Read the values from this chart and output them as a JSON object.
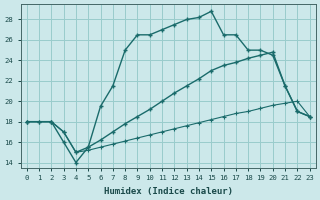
{
  "xlabel": "Humidex (Indice chaleur)",
  "bg_color": "#cce8ea",
  "grid_color": "#99cccc",
  "line_color": "#1a6b6b",
  "xlim": [
    -0.5,
    23.5
  ],
  "ylim": [
    13.5,
    29.5
  ],
  "xticks": [
    0,
    1,
    2,
    3,
    4,
    5,
    6,
    7,
    8,
    9,
    10,
    11,
    12,
    13,
    14,
    15,
    16,
    17,
    18,
    19,
    20,
    21,
    22,
    23
  ],
  "yticks": [
    14,
    16,
    18,
    20,
    22,
    24,
    26,
    28
  ],
  "line1_x": [
    0,
    1,
    2,
    3,
    4,
    5,
    6,
    7,
    8,
    9,
    10,
    11,
    12,
    13,
    14,
    15,
    16,
    17,
    18,
    19,
    20,
    21,
    22,
    23
  ],
  "line1_y": [
    18,
    18,
    18,
    16,
    14,
    15.5,
    19.5,
    21.5,
    25,
    26.5,
    26.5,
    27,
    27.5,
    28,
    28.2,
    28.8,
    26.5,
    26.5,
    25,
    25,
    24.5,
    21.5,
    19,
    18.5
  ],
  "line2_x": [
    0,
    2,
    3,
    4,
    5,
    6,
    7,
    8,
    9,
    10,
    11,
    12,
    13,
    14,
    15,
    16,
    17,
    18,
    19,
    20,
    21,
    22,
    23
  ],
  "line2_y": [
    18,
    18,
    17,
    15,
    15.5,
    16.2,
    17,
    17.8,
    18.5,
    19.2,
    20,
    20.8,
    21.5,
    22.2,
    23,
    23.5,
    23.8,
    24.2,
    24.5,
    24.8,
    21.5,
    19,
    18.5
  ],
  "line3_x": [
    0,
    1,
    2,
    3,
    4,
    5,
    6,
    7,
    8,
    9,
    10,
    11,
    12,
    13,
    14,
    15,
    16,
    17,
    18,
    19,
    20,
    21,
    22,
    23
  ],
  "line3_y": [
    18,
    18,
    18,
    17,
    15,
    15.2,
    15.5,
    15.8,
    16.1,
    16.4,
    16.7,
    17,
    17.3,
    17.6,
    17.9,
    18.2,
    18.5,
    18.8,
    19.0,
    19.3,
    19.6,
    19.8,
    20.0,
    18.5
  ]
}
